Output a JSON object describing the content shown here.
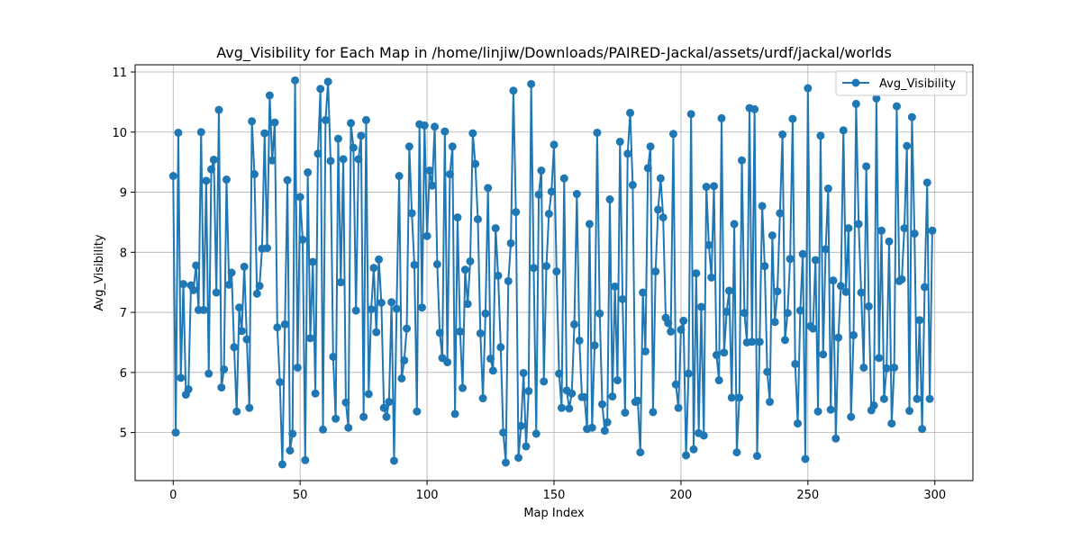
{
  "chart_data": {
    "type": "line",
    "title": "Avg_Visibility for Each Map in /home/linjiw/Downloads/PAIRED-Jackal/assets/urdf/jackal/worlds",
    "xlabel": "Map Index",
    "ylabel": "Avg_Visibility",
    "xlim": [
      -15,
      315
    ],
    "ylim": [
      4.2,
      11.12
    ],
    "xticks": [
      0,
      50,
      100,
      150,
      200,
      250,
      300
    ],
    "yticks": [
      5,
      6,
      7,
      8,
      9,
      10,
      11
    ],
    "grid": true,
    "legend_position": "top-right",
    "colors": {
      "series": "#1f77b4"
    },
    "series": [
      {
        "name": "Avg_Visibility",
        "marker": "circle",
        "x_start": 0,
        "x_step": 1,
        "values": [
          9.27,
          5.0,
          9.99,
          5.91,
          7.47,
          5.63,
          5.72,
          7.45,
          7.37,
          7.78,
          7.04,
          10.0,
          7.04,
          9.19,
          5.98,
          9.38,
          9.54,
          7.33,
          10.37,
          5.75,
          6.05,
          9.21,
          7.46,
          7.66,
          6.42,
          5.35,
          7.08,
          6.69,
          7.76,
          6.55,
          5.41,
          10.18,
          9.3,
          7.31,
          7.44,
          8.06,
          9.98,
          8.07,
          10.61,
          9.53,
          10.16,
          6.75,
          5.84,
          4.47,
          6.8,
          9.2,
          4.7,
          4.98,
          10.86,
          6.08,
          8.92,
          8.21,
          4.54,
          9.33,
          6.57,
          7.84,
          5.65,
          9.64,
          10.72,
          5.05,
          10.2,
          10.84,
          9.52,
          6.26,
          5.23,
          9.89,
          7.5,
          9.55,
          5.5,
          5.08,
          10.15,
          9.74,
          7.03,
          9.55,
          9.94,
          5.26,
          10.2,
          5.64,
          7.05,
          7.74,
          6.67,
          7.88,
          7.16,
          5.41,
          5.26,
          5.51,
          7.17,
          4.53,
          7.06,
          9.27,
          5.9,
          6.2,
          6.73,
          9.76,
          8.65,
          7.79,
          5.35,
          10.13,
          7.08,
          10.11,
          8.27,
          9.36,
          9.11,
          10.09,
          7.8,
          6.66,
          6.24,
          10.01,
          6.17,
          9.3,
          9.76,
          5.31,
          8.58,
          6.68,
          5.74,
          7.71,
          7.14,
          7.85,
          9.98,
          9.47,
          8.55,
          6.65,
          5.57,
          6.98,
          9.07,
          6.23,
          6.03,
          8.4,
          7.61,
          6.42,
          5.0,
          4.5,
          7.52,
          8.15,
          10.69,
          8.67,
          4.58,
          5.11,
          5.99,
          4.77,
          5.69,
          10.8,
          7.74,
          4.98,
          8.96,
          9.36,
          5.85,
          7.77,
          8.64,
          9.01,
          9.79,
          7.68,
          5.98,
          5.41,
          9.23,
          5.7,
          5.4,
          5.65,
          6.8,
          8.97,
          6.53,
          5.59,
          5.59,
          5.06,
          8.47,
          5.08,
          6.45,
          9.99,
          6.98,
          5.47,
          5.03,
          5.17,
          8.88,
          5.6,
          7.43,
          5.87,
          9.84,
          7.22,
          5.33,
          9.64,
          10.32,
          9.12,
          5.51,
          5.53,
          4.67,
          7.33,
          6.35,
          9.4,
          9.76,
          5.34,
          7.68,
          8.71,
          9.23,
          8.58,
          6.91,
          6.82,
          6.68,
          9.97,
          5.8,
          5.41,
          6.71,
          6.86,
          4.62,
          5.98,
          10.3,
          4.72,
          7.65,
          4.99,
          7.09,
          4.95,
          9.09,
          8.12,
          7.58,
          9.1,
          6.29,
          5.87,
          10.23,
          6.33,
          7.01,
          7.36,
          5.58,
          8.47,
          4.67,
          5.58,
          9.53,
          6.99,
          6.5,
          10.4,
          6.51,
          10.38,
          4.61,
          6.51,
          8.77,
          7.77,
          6.01,
          5.51,
          8.28,
          6.84,
          7.35,
          8.65,
          9.96,
          6.54,
          6.99,
          7.89,
          10.22,
          6.14,
          5.15,
          7.03,
          7.97,
          4.56,
          10.73,
          6.77,
          6.73,
          7.87,
          5.35,
          9.94,
          6.3,
          8.05,
          9.06,
          5.38,
          7.53,
          4.9,
          6.58,
          7.44,
          10.03,
          7.34,
          8.4,
          5.26,
          6.62,
          10.47,
          8.47,
          7.33,
          6.08,
          9.43,
          7.1,
          5.37,
          5.45,
          10.56,
          6.24,
          8.36,
          5.56,
          6.07,
          8.18,
          5.15,
          6.08,
          10.43,
          7.52,
          7.55,
          8.4,
          9.77,
          5.36,
          10.25,
          8.31,
          5.56,
          6.87,
          5.06,
          7.42,
          9.16,
          5.56,
          8.36
        ]
      }
    ]
  }
}
